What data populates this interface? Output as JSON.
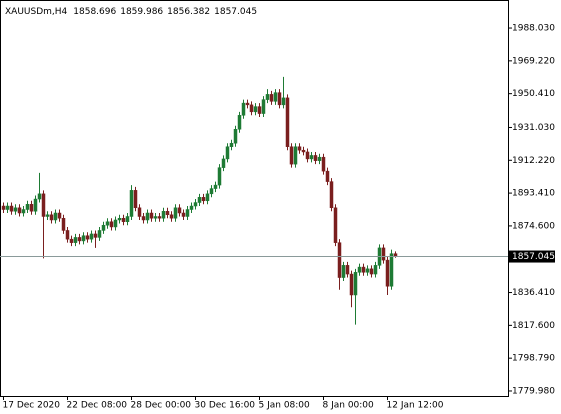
{
  "chart_data": {
    "type": "candlestick",
    "title": "XAUUSDm,H4",
    "up_color": "#1e7b34",
    "down_color": "#7a1f1f",
    "grid": false,
    "ylim": [
      1777.1,
      2004.1
    ],
    "yticks": [
      {
        "value": 1988.03,
        "label": "1988.030"
      },
      {
        "value": 1969.22,
        "label": "1969.220"
      },
      {
        "value": 1950.41,
        "label": "1950.410"
      },
      {
        "value": 1931.03,
        "label": "1931.030"
      },
      {
        "value": 1912.22,
        "label": "1912.220"
      },
      {
        "value": 1893.41,
        "label": "1893.410"
      },
      {
        "value": 1874.6,
        "label": "1874.600"
      },
      {
        "value": 1836.41,
        "label": "1836.410"
      },
      {
        "value": 1817.6,
        "label": "1817.600"
      },
      {
        "value": 1798.79,
        "label": "1798.790"
      },
      {
        "value": 1779.98,
        "label": "1779.980"
      }
    ],
    "categories": [
      "17 Dec 2020",
      null,
      null,
      null,
      null,
      null,
      null,
      null,
      null,
      null,
      null,
      null,
      null,
      null,
      null,
      null,
      "22 Dec 08:00",
      null,
      null,
      null,
      null,
      null,
      null,
      null,
      null,
      null,
      null,
      null,
      null,
      null,
      null,
      null,
      "28 Dec 00:00",
      null,
      null,
      null,
      null,
      null,
      null,
      null,
      null,
      null,
      null,
      null,
      null,
      null,
      null,
      null,
      "30 Dec 16:00",
      null,
      null,
      null,
      null,
      null,
      null,
      null,
      null,
      null,
      null,
      null,
      null,
      null,
      null,
      null,
      "5 Jan 08:00",
      null,
      null,
      null,
      null,
      null,
      null,
      null,
      null,
      null,
      null,
      null,
      null,
      null,
      null,
      null,
      "8 Jan 00:00",
      null,
      null,
      null,
      null,
      null,
      null,
      null,
      null,
      null,
      null,
      null,
      null,
      null,
      null,
      null,
      "12 Jan 12:00",
      null,
      null
    ],
    "open": [
      1886,
      1884,
      1886,
      1883,
      1885,
      1882,
      1884,
      1887,
      1883,
      1890,
      1893,
      1880,
      1881,
      1878,
      1882,
      1879,
      1872,
      1867,
      1865,
      1868,
      1866,
      1869,
      1867,
      1870,
      1868,
      1872,
      1875,
      1877,
      1874,
      1878,
      1879,
      1877,
      1880,
      1895,
      1885,
      1880,
      1878,
      1882,
      1879,
      1880,
      1879,
      1883,
      1881,
      1879,
      1885,
      1882,
      1880,
      1884,
      1886,
      1888,
      1891,
      1889,
      1893,
      1896,
      1898,
      1908,
      1913,
      1920,
      1922,
      1930,
      1938,
      1945,
      1944,
      1940,
      1943,
      1939,
      1947,
      1950,
      1946,
      1951,
      1944,
      1948,
      1920,
      1910,
      1920,
      1918,
      1917,
      1913,
      1915,
      1912,
      1914,
      1906,
      1900,
      1885,
      1865,
      1845,
      1852,
      1847,
      1835,
      1848,
      1851,
      1848,
      1850,
      1847,
      1852,
      1862,
      1855,
      1840,
      1858.696
    ],
    "high": [
      1888,
      1888,
      1888,
      1887,
      1887,
      1886,
      1889,
      1889,
      1892,
      1905,
      1895,
      1883,
      1883,
      1884,
      1884,
      1881,
      1874,
      1869,
      1870,
      1870,
      1871,
      1871,
      1872,
      1872,
      1874,
      1877,
      1879,
      1879,
      1880,
      1881,
      1881,
      1882,
      1898,
      1897,
      1887,
      1882,
      1884,
      1884,
      1882,
      1882,
      1885,
      1885,
      1883,
      1887,
      1887,
      1884,
      1886,
      1888,
      1890,
      1893,
      1893,
      1895,
      1898,
      1900,
      1910,
      1915,
      1922,
      1924,
      1932,
      1940,
      1947,
      1947,
      1946,
      1945,
      1945,
      1949,
      1953,
      1952,
      1953,
      1953,
      1960,
      1950,
      1922,
      1922,
      1922,
      1920,
      1919,
      1917,
      1917,
      1916,
      1916,
      1908,
      1902,
      1887,
      1867,
      1854,
      1854,
      1849,
      1850,
      1853,
      1853,
      1852,
      1852,
      1854,
      1864,
      1864,
      1857,
      1861,
      1859.986
    ],
    "low": [
      1882,
      1882,
      1881,
      1881,
      1880,
      1880,
      1882,
      1881,
      1881,
      1888,
      1856,
      1878,
      1876,
      1876,
      1877,
      1870,
      1865,
      1863,
      1863,
      1864,
      1864,
      1865,
      1865,
      1862,
      1866,
      1870,
      1873,
      1872,
      1872,
      1876,
      1875,
      1875,
      1878,
      1883,
      1878,
      1876,
      1876,
      1877,
      1877,
      1877,
      1877,
      1879,
      1877,
      1877,
      1880,
      1878,
      1878,
      1882,
      1884,
      1886,
      1887,
      1887,
      1891,
      1894,
      1896,
      1906,
      1911,
      1918,
      1920,
      1928,
      1936,
      1942,
      1938,
      1938,
      1937,
      1937,
      1945,
      1944,
      1944,
      1942,
      1942,
      1918,
      1908,
      1908,
      1916,
      1915,
      1911,
      1911,
      1910,
      1910,
      1904,
      1898,
      1883,
      1863,
      1838,
      1843,
      1845,
      1828,
      1818,
      1846,
      1846,
      1846,
      1845,
      1845,
      1850,
      1853,
      1835,
      1838,
      1856.382
    ],
    "close": [
      1884,
      1886,
      1883,
      1885,
      1882,
      1884,
      1887,
      1883,
      1890,
      1893,
      1880,
      1881,
      1878,
      1882,
      1879,
      1872,
      1867,
      1865,
      1868,
      1866,
      1869,
      1867,
      1870,
      1868,
      1872,
      1875,
      1877,
      1874,
      1878,
      1879,
      1877,
      1880,
      1895,
      1885,
      1880,
      1878,
      1882,
      1879,
      1880,
      1879,
      1883,
      1881,
      1879,
      1885,
      1882,
      1880,
      1884,
      1886,
      1888,
      1891,
      1889,
      1893,
      1896,
      1898,
      1908,
      1913,
      1920,
      1922,
      1930,
      1938,
      1945,
      1944,
      1940,
      1943,
      1939,
      1947,
      1950,
      1946,
      1951,
      1944,
      1948,
      1920,
      1910,
      1920,
      1918,
      1917,
      1913,
      1915,
      1912,
      1914,
      1906,
      1900,
      1885,
      1865,
      1845,
      1852,
      1847,
      1835,
      1848,
      1851,
      1848,
      1850,
      1847,
      1852,
      1862,
      1855,
      1840,
      1858.696,
      1857.045
    ]
  }
}
